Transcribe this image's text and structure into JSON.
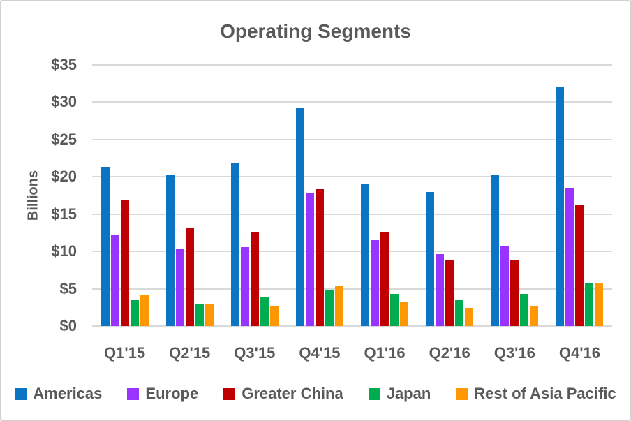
{
  "chart_data": {
    "type": "bar",
    "title": "Operating Segments",
    "xlabel": "",
    "ylabel": "Billions",
    "ylim": [
      0,
      35
    ],
    "ytick_labels": [
      "$0",
      "$5",
      "$10",
      "$15",
      "$20",
      "$25",
      "$30",
      "$35"
    ],
    "grid": true,
    "legend_position": "bottom",
    "categories": [
      "Q1'15",
      "Q2'15",
      "Q3'15",
      "Q4'15",
      "Q1'16",
      "Q2'16",
      "Q3'16",
      "Q4'16"
    ],
    "series": [
      {
        "name": "Americas",
        "color": "#0B74C5",
        "values": [
          21.3,
          20.2,
          21.8,
          29.3,
          19.1,
          18.0,
          20.2,
          32.0
        ]
      },
      {
        "name": "Europe",
        "color": "#9933FF",
        "values": [
          12.2,
          10.3,
          10.6,
          17.9,
          11.5,
          9.6,
          10.8,
          18.5
        ]
      },
      {
        "name": "Greater China",
        "color": "#C00000",
        "values": [
          16.8,
          13.2,
          12.5,
          18.4,
          12.5,
          8.8,
          8.8,
          16.2
        ]
      },
      {
        "name": "Japan",
        "color": "#00AC50",
        "values": [
          3.5,
          2.9,
          3.9,
          4.8,
          4.3,
          3.5,
          4.3,
          5.8
        ]
      },
      {
        "name": "Rest of Asia Pacific",
        "color": "#FF9700",
        "values": [
          4.2,
          3.0,
          2.7,
          5.4,
          3.2,
          2.4,
          2.7,
          5.8
        ]
      }
    ]
  },
  "colors": {
    "text": "#595959",
    "grid": "#D9D9D9",
    "border": "#D0D0D0",
    "background": "#FFFFFF"
  }
}
